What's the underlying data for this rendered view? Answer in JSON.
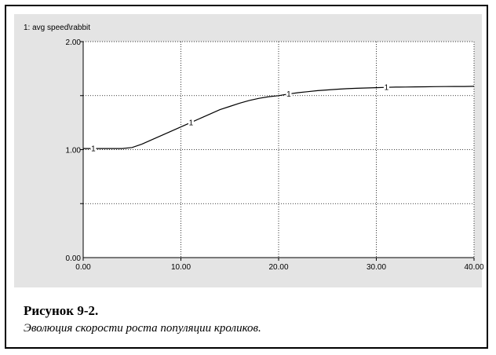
{
  "chart_data": {
    "type": "line",
    "series_header": "1: avg  speed\\rabbit",
    "series": [
      {
        "marker": "1",
        "x": [
          0,
          1,
          2,
          3,
          4,
          5,
          6,
          7,
          8,
          9,
          10,
          11,
          12,
          13,
          14,
          15,
          16,
          17,
          18,
          19,
          20,
          21,
          22,
          23,
          24,
          25,
          26,
          27,
          28,
          29,
          30,
          31,
          32,
          33,
          34,
          35,
          36,
          37,
          38,
          39,
          40
        ],
        "values": [
          1.01,
          1.01,
          1.01,
          1.01,
          1.01,
          1.02,
          1.05,
          1.09,
          1.13,
          1.17,
          1.21,
          1.25,
          1.29,
          1.33,
          1.37,
          1.4,
          1.43,
          1.455,
          1.475,
          1.49,
          1.5,
          1.515,
          1.527,
          1.537,
          1.546,
          1.553,
          1.559,
          1.564,
          1.568,
          1.571,
          1.574,
          1.577,
          1.579,
          1.58,
          1.581,
          1.582,
          1.583,
          1.584,
          1.585,
          1.585,
          1.586
        ],
        "marker_x": [
          1,
          11,
          21,
          31
        ]
      }
    ],
    "xlim": [
      0,
      40
    ],
    "ylim": [
      0,
      2
    ],
    "x_ticks": [
      0,
      10,
      20,
      30,
      40
    ],
    "x_tick_labels": [
      "0.00",
      "10.00",
      "20.00",
      "30.00",
      "40.00"
    ],
    "y_ticks": [
      0,
      1,
      2
    ],
    "y_tick_labels": [
      "0.00",
      "1.00",
      "2.00"
    ],
    "y_gridlines": [
      0.5,
      1,
      1.5,
      2
    ],
    "grid": true
  },
  "caption": {
    "title": "Рисунок 9-2.",
    "text": "Эволюция скорости роста популяции кроликов."
  }
}
